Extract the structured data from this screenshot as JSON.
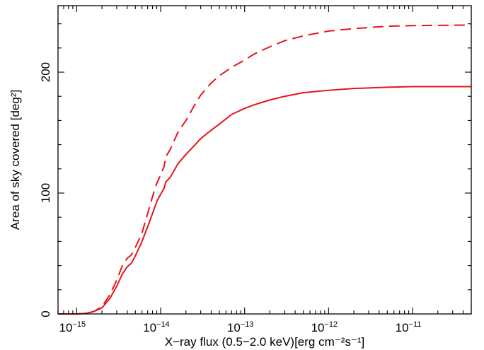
{
  "chart_data": {
    "type": "line",
    "xlabel": "X−ray flux (0.5−2.0 keV)[erg cm⁻²s⁻¹]",
    "ylabel": "Area of sky covered [deg²]",
    "xscale": "log",
    "xlim": [
      6e-16,
      5e-11
    ],
    "ylim": [
      0,
      255
    ],
    "grid": false,
    "x_ticks": [
      {
        "value": 1e-15,
        "base": "10",
        "exp": "−15"
      },
      {
        "value": 1e-14,
        "base": "10",
        "exp": "−14"
      },
      {
        "value": 1e-13,
        "base": "10",
        "exp": "−13"
      },
      {
        "value": 1e-12,
        "base": "10",
        "exp": "−12"
      },
      {
        "value": 1e-11,
        "base": "10",
        "exp": "−11"
      }
    ],
    "y_ticks": [
      {
        "value": 0,
        "label": "0"
      },
      {
        "value": 100,
        "label": "100"
      },
      {
        "value": 200,
        "label": "200"
      }
    ],
    "series": [
      {
        "style": "dashed",
        "color": "#e8141b",
        "points": [
          [
            6e-16,
            0
          ],
          [
            1e-15,
            0
          ],
          [
            1.3e-15,
            0.5
          ],
          [
            1.6e-15,
            2
          ],
          [
            2e-15,
            6
          ],
          [
            2.5e-15,
            16
          ],
          [
            3e-15,
            28
          ],
          [
            3.5e-15,
            40
          ],
          [
            4e-15,
            46
          ],
          [
            4.5e-15,
            49
          ],
          [
            5e-15,
            55
          ],
          [
            6e-15,
            67
          ],
          [
            7e-15,
            83
          ],
          [
            8e-15,
            97
          ],
          [
            9e-15,
            108
          ],
          [
            1e-14,
            115
          ],
          [
            1.1e-14,
            122
          ],
          [
            1.15e-14,
            130
          ],
          [
            1.3e-14,
            136
          ],
          [
            1.6e-14,
            150
          ],
          [
            2e-14,
            160
          ],
          [
            2.5e-14,
            172
          ],
          [
            3e-14,
            181
          ],
          [
            4e-14,
            191
          ],
          [
            5e-14,
            197
          ],
          [
            7e-14,
            204
          ],
          [
            1e-13,
            210
          ],
          [
            1.3e-13,
            215
          ],
          [
            2e-13,
            221
          ],
          [
            3e-13,
            226
          ],
          [
            5e-13,
            230
          ],
          [
            1e-12,
            234
          ],
          [
            2e-12,
            236
          ],
          [
            5e-12,
            238
          ],
          [
            1e-11,
            238.5
          ],
          [
            5e-11,
            239
          ]
        ]
      },
      {
        "style": "solid",
        "color": "#e8141b",
        "points": [
          [
            6e-16,
            0
          ],
          [
            1e-15,
            0
          ],
          [
            1.3e-15,
            0.5
          ],
          [
            1.6e-15,
            2
          ],
          [
            2e-15,
            5
          ],
          [
            2.5e-15,
            13
          ],
          [
            3e-15,
            23
          ],
          [
            3.5e-15,
            33
          ],
          [
            4e-15,
            39
          ],
          [
            4.5e-15,
            42
          ],
          [
            5e-15,
            48
          ],
          [
            6e-15,
            60
          ],
          [
            7e-15,
            72
          ],
          [
            8e-15,
            83
          ],
          [
            9e-15,
            93
          ],
          [
            1e-14,
            99
          ],
          [
            1.1e-14,
            104
          ],
          [
            1.15e-14,
            109
          ],
          [
            1.3e-14,
            113
          ],
          [
            1.6e-14,
            124
          ],
          [
            2e-14,
            132
          ],
          [
            2.5e-14,
            139
          ],
          [
            3e-14,
            145
          ],
          [
            4e-14,
            152
          ],
          [
            5e-14,
            157
          ],
          [
            7e-14,
            165
          ],
          [
            1e-13,
            170
          ],
          [
            1.3e-13,
            173
          ],
          [
            2e-13,
            177
          ],
          [
            3e-13,
            180
          ],
          [
            5e-13,
            183
          ],
          [
            1e-12,
            185
          ],
          [
            2e-12,
            186.5
          ],
          [
            5e-12,
            187.5
          ],
          [
            1e-11,
            188
          ],
          [
            5e-11,
            188
          ]
        ]
      }
    ]
  }
}
